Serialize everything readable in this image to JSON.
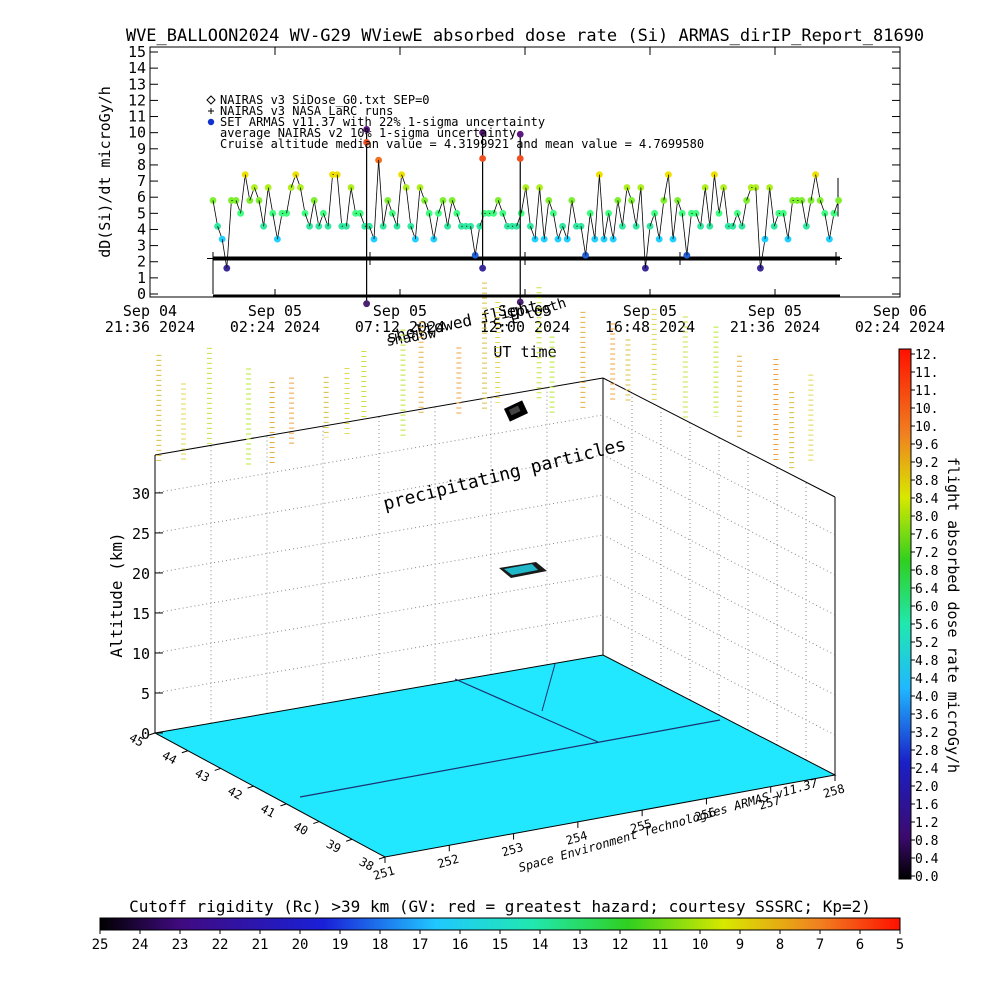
{
  "page": {
    "title": "WVE_BALLOON2024 WV-G29 WViewE absorbed dose rate (Si) ARMAS_dirIP_Report_81690",
    "credit": "Space Environment Technologies ARMAS v11.37"
  },
  "chart_data": [
    {
      "id": "timeseries",
      "type": "scatter",
      "ylabel": "dD(Si)/dt microGy/h",
      "xlabel": "UT time",
      "ylim": [
        0,
        15
      ],
      "yticks": [
        "0",
        "1",
        "2",
        "3",
        "4",
        "5",
        "6",
        "7",
        "8",
        "9",
        "10",
        "11",
        "12",
        "13",
        "14",
        "15"
      ],
      "xticks": [
        {
          "l1": "Sep 04",
          "l2": "21:36 2024"
        },
        {
          "l1": "Sep 05",
          "l2": "02:24 2024"
        },
        {
          "l1": "Sep 05",
          "l2": "07:12 2024"
        },
        {
          "l1": "Sep 05",
          "l2": "12:00 2024"
        },
        {
          "l1": "Sep 05",
          "l2": "16:48 2024"
        },
        {
          "l1": "Sep 05",
          "l2": "21:36 2024"
        },
        {
          "l1": "Sep 06",
          "l2": "02:24 2024"
        }
      ],
      "legend": [
        "NAIRAS v3 SiDose_G0.txt SEP=0",
        "NAIRAS v3 NASA LaRC runs",
        "SET ARMAS v11.37 with 22% 1-sigma uncertainty",
        "average NAIRAS v2 10% 1-sigma uncertainty",
        "Cruise altitude median value = 4.3199921 and mean value = 4.7699580"
      ],
      "annotations": [
        "sheltowed flight",
        "shadow",
        "S.t tooth"
      ],
      "nairas_baseline": 2.2,
      "cruise_median": 4.3199921,
      "cruise_mean": 4.769958,
      "armas_levels": [
        {
          "value": 1.6,
          "color": "#3a2a9a"
        },
        {
          "value": 2.4,
          "color": "#2060d8"
        },
        {
          "value": 3.4,
          "color": "#20d0ff"
        },
        {
          "value": 4.2,
          "color": "#30e8a0"
        },
        {
          "value": 5.0,
          "color": "#40ff80"
        },
        {
          "value": 5.8,
          "color": "#80ef30"
        },
        {
          "value": 6.6,
          "color": "#b0f020"
        },
        {
          "value": 7.4,
          "color": "#f0e000"
        },
        {
          "value": 8.3,
          "color": "#f07020"
        }
      ],
      "armas_spikes": [
        {
          "t": 0.245,
          "values": [
            -0.6,
            10.2,
            9.4
          ]
        },
        {
          "t": 0.43,
          "values": [
            1.6,
            10.0,
            8.4
          ]
        },
        {
          "t": 0.49,
          "values": [
            -0.5,
            9.9,
            8.4
          ]
        }
      ]
    },
    {
      "id": "altitude3d",
      "type": "scatter",
      "zlabel": "Altitude (km)",
      "zticks": [
        "0",
        "5",
        "10",
        "15",
        "20",
        "25",
        "30"
      ],
      "lon_ticks": [
        "251",
        "252",
        "253",
        "254",
        "255",
        "256",
        "257",
        "258"
      ],
      "lat_ticks": [
        "38",
        "39",
        "40",
        "41",
        "42",
        "43",
        "44",
        "45"
      ],
      "annotation": "precipitating particles",
      "surface_color": "#22e8ff"
    }
  ],
  "colorbars": {
    "dose": {
      "label": "flight absorbed dose rate microGy/h",
      "ticks": [
        "0.0",
        "0.4",
        "0.8",
        "1.2",
        "1.6",
        "2.0",
        "2.4",
        "2.8",
        "3.2",
        "3.6",
        "4.0",
        "4.4",
        "4.8",
        "5.2",
        "5.6",
        "6.0",
        "6.4",
        "6.8",
        "7.2",
        "7.6",
        "8.0",
        "8.4",
        "8.8",
        "9.2",
        "9.6",
        "10.",
        "10.",
        "11.",
        "11.",
        "12."
      ]
    },
    "rigidity": {
      "label": "Cutoff rigidity (Rc) >39 km (GV: red = greatest hazard; courtesy SSSRC; Kp=2)",
      "ticks": [
        "25",
        "24",
        "23",
        "22",
        "21",
        "20",
        "19",
        "18",
        "17",
        "16",
        "15",
        "14",
        "13",
        "12",
        "11",
        "10",
        "9",
        "8",
        "7",
        "6",
        "5"
      ]
    }
  }
}
